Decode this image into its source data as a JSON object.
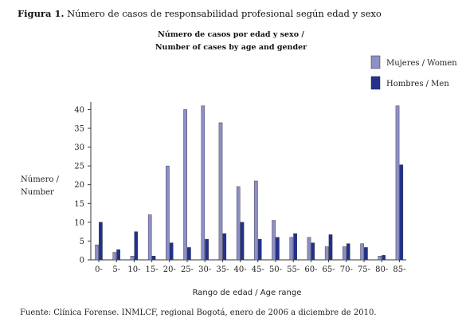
{
  "figure": {
    "label": "Figura 1.",
    "caption": "Número de casos de responsabilidad profesional según edad y sexo"
  },
  "chart_data": {
    "type": "bar",
    "title_line1": "Número de casos por edad y sexo /",
    "title_line2": "Number of cases by age and gender",
    "ylabel_line1": "Número /",
    "ylabel_line2": "Number",
    "xlabel": "Rango de edad / Age range",
    "ylim": [
      0,
      42
    ],
    "yticks": [
      0,
      5,
      10,
      15,
      20,
      25,
      30,
      35,
      40
    ],
    "categories": [
      "0-",
      "5-",
      "10-",
      "15-",
      "20-",
      "25-",
      "30-",
      "35-",
      "40-",
      "45-",
      "50-",
      "55-",
      "60-",
      "65-",
      "70-",
      "75-",
      "80-",
      "85-"
    ],
    "series": [
      {
        "name": "Mujeres / Women",
        "color": "#8e8fc4",
        "values": [
          4,
          2,
          1,
          12,
          25,
          40,
          41,
          36.5,
          19.5,
          21,
          10.5,
          6,
          6,
          3.5,
          3.5,
          4.3,
          1,
          41
        ]
      },
      {
        "name": "Hombres / Men",
        "color": "#22318a",
        "values": [
          10,
          2.7,
          7.5,
          1,
          4.5,
          3.3,
          5.5,
          7,
          10,
          5.5,
          6,
          7,
          4.5,
          6.7,
          4.3,
          3.3,
          1.2,
          25.3
        ]
      }
    ],
    "legend_position": "top-right",
    "grid": false
  },
  "source": "Fuente: Clínica Forense. INMLCF, regional Bogotá, enero de 2006 a diciembre de 2010."
}
